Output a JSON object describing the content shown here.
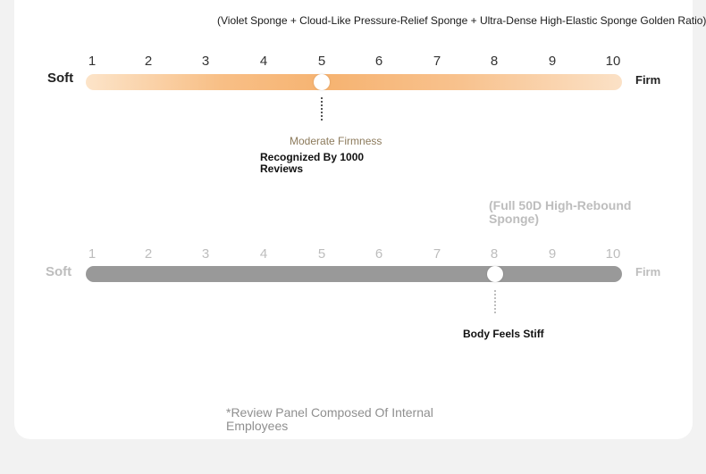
{
  "headline": "(Violet Sponge + Cloud-Like Pressure-Relief Sponge + Ultra-Dense High-Elastic Sponge Golden Ratio)",
  "scale_numbers": [
    "1",
    "2",
    "3",
    "4",
    "5",
    "6",
    "7",
    "8",
    "9",
    "10"
  ],
  "scale1": {
    "soft_label": "Soft",
    "firm_label": "Firm",
    "level": 5,
    "note_title": "Moderate Firmness",
    "note_sub": "Recognized By 1000 Reviews",
    "colors": {
      "bar_light": "#fce4c9",
      "bar_dark": "#f6b371",
      "note_title": "#8c7a5b"
    }
  },
  "scale2": {
    "caption": "(Full 50D High-Rebound Sponge)",
    "soft_label": "Soft",
    "firm_label": "Firm",
    "level": 8,
    "note": "Body Feels Stiff",
    "colors": {
      "bar": "#999999",
      "muted_text": "#bdbdbd"
    }
  },
  "footnote": "*Review Panel Composed Of Internal Employees"
}
